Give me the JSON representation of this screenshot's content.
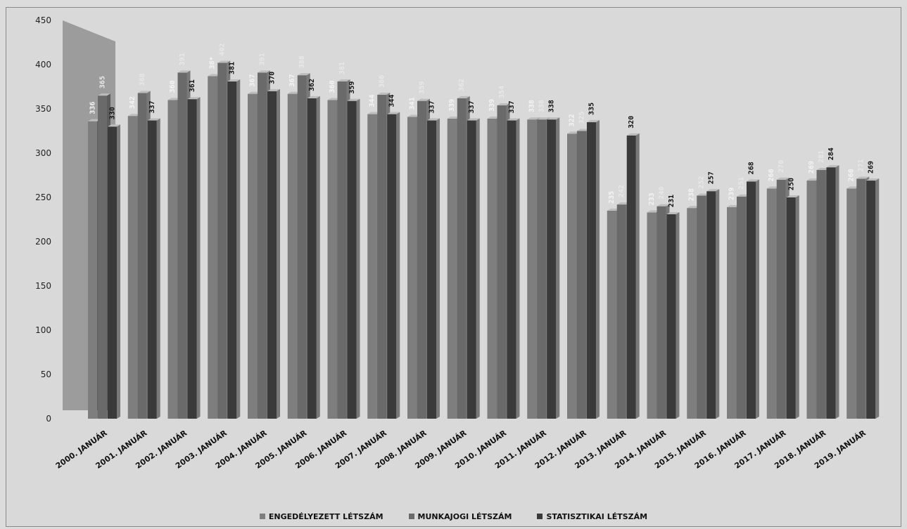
{
  "chart_data": {
    "type": "bar",
    "title": "",
    "xlabel": "",
    "ylabel": "",
    "ylim": [
      0,
      450
    ],
    "yticks": [
      0,
      50,
      100,
      150,
      200,
      250,
      300,
      350,
      400,
      450
    ],
    "grid": false,
    "legend_position": "bottom",
    "categories": [
      "2000. JANUÁR",
      "2001. JANUÁR",
      "2002. JANUÁR",
      "2003. JANUÁR",
      "2004. JANUÁR",
      "2005. JANUÁR",
      "2006. JANUÁR",
      "2007. JANUÁR",
      "2008. JANUÁR",
      "2009. JANUÁR",
      "2010. JANUÁR",
      "2011. JANUÁR",
      "2012. JANUÁR",
      "2013. JANUÁR",
      "2014. JANUÁR",
      "2015. JANUÁR",
      "2016. JANUÁR",
      "2017. JANUÁR",
      "2018. JANUÁR",
      "2019. JANUÁR"
    ],
    "series": [
      {
        "name": "ENGEDÉLYEZETT LÉTSZÁM",
        "color": "#7e7e7e",
        "values": [
          336,
          342,
          360,
          387,
          367,
          367,
          360,
          344,
          341,
          339,
          339,
          338,
          322,
          235,
          233,
          238,
          239,
          260,
          269,
          260
        ],
        "labels": [
          "336",
          "342",
          "360",
          "38*",
          "367",
          "367",
          "360",
          "344",
          "341",
          "339",
          "339",
          "338",
          "322",
          "235",
          "233",
          "238",
          "239",
          "260",
          "269",
          "260"
        ]
      },
      {
        "name": "MUNKAJOGI LÉTSZÁM",
        "color": "#6a6a6a",
        "values": [
          365,
          368,
          391,
          402,
          391,
          388,
          381,
          366,
          359,
          362,
          354,
          338,
          325,
          242,
          240,
          252,
          251,
          270,
          281,
          271
        ],
        "labels": [
          "365",
          "368",
          "391",
          "402",
          "391",
          "388",
          "381",
          "366",
          "359",
          "362",
          "354",
          "338",
          "325",
          "242",
          "240",
          "252",
          "251",
          "270",
          "281",
          "271"
        ]
      },
      {
        "name": "STATISZTIKAI LÉTSZÁM",
        "color": "#3a3a3a",
        "values": [
          330,
          337,
          361,
          381,
          370,
          362,
          359,
          344,
          337,
          337,
          337,
          338,
          335,
          320,
          231,
          257,
          268,
          250,
          284,
          269
        ],
        "labels": [
          "330",
          "337",
          "361",
          "381",
          "370",
          "362",
          "359",
          "344",
          "337",
          "337",
          "337",
          "338",
          "335",
          "320",
          "231",
          "257",
          "268",
          "250",
          "284",
          "269"
        ]
      }
    ]
  },
  "colors": {
    "background": "#d9d9d9",
    "back_wall_left": "#9a9a9a",
    "axis_text": "#222222"
  }
}
